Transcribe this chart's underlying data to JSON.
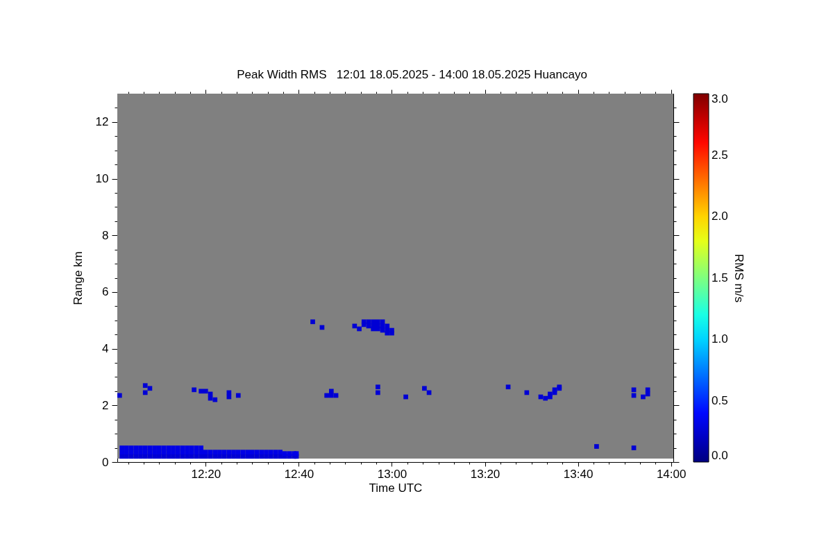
{
  "chart_data": {
    "type": "scatter",
    "title": "Peak Width RMS   12:01 18.05.2025 - 14:00 18.05.2025 Huancayo",
    "xlabel": "Time UTC",
    "ylabel": "Range km",
    "clabel": "RMS m/s",
    "xlim": [
      12.0167,
      14.0083
    ],
    "xticks": [
      {
        "value": 12.0556,
        "label": null
      },
      {
        "value": 12.1111,
        "label": null
      },
      {
        "value": 12.1667,
        "label": null
      },
      {
        "value": 12.2222,
        "label": null
      },
      {
        "value": 12.2778,
        "label": null
      },
      {
        "value": 12.3333,
        "label": "12:20"
      },
      {
        "value": 12.3889,
        "label": null
      },
      {
        "value": 12.4444,
        "label": null
      },
      {
        "value": 12.5,
        "label": null
      },
      {
        "value": 12.5556,
        "label": null
      },
      {
        "value": 12.6111,
        "label": null
      },
      {
        "value": 12.6667,
        "label": "12:40"
      },
      {
        "value": 12.7222,
        "label": null
      },
      {
        "value": 12.7778,
        "label": null
      },
      {
        "value": 12.8333,
        "label": null
      },
      {
        "value": 12.8889,
        "label": null
      },
      {
        "value": 12.9444,
        "label": null
      },
      {
        "value": 13,
        "label": "13:00"
      },
      {
        "value": 13.0556,
        "label": null
      },
      {
        "value": 13.1111,
        "label": null
      },
      {
        "value": 13.1667,
        "label": null
      },
      {
        "value": 13.2222,
        "label": null
      },
      {
        "value": 13.2778,
        "label": null
      },
      {
        "value": 13.3333,
        "label": "13:20"
      },
      {
        "value": 13.3889,
        "label": null
      },
      {
        "value": 13.4444,
        "label": null
      },
      {
        "value": 13.5,
        "label": null
      },
      {
        "value": 13.5556,
        "label": null
      },
      {
        "value": 13.6111,
        "label": null
      },
      {
        "value": 13.6667,
        "label": "13:40"
      },
      {
        "value": 13.7222,
        "label": null
      },
      {
        "value": 13.7778,
        "label": null
      },
      {
        "value": 13.8333,
        "label": null
      },
      {
        "value": 13.8889,
        "label": null
      },
      {
        "value": 13.9444,
        "label": null
      },
      {
        "value": 14,
        "label": "14:00"
      }
    ],
    "ylim": [
      0,
      13
    ],
    "yticks": [
      0,
      {
        "value": 0.5,
        "label": null
      },
      {
        "value": 1,
        "label": null
      },
      {
        "value": 1.5,
        "label": null
      },
      2,
      {
        "value": 2.5,
        "label": null
      },
      {
        "value": 3,
        "label": null
      },
      {
        "value": 3.5,
        "label": null
      },
      4,
      {
        "value": 4.5,
        "label": null
      },
      {
        "value": 5,
        "label": null
      },
      {
        "value": 5.5,
        "label": null
      },
      6,
      {
        "value": 6.5,
        "label": null
      },
      {
        "value": 7,
        "label": null
      },
      {
        "value": 7.5,
        "label": null
      },
      8,
      {
        "value": 8.5,
        "label": null
      },
      {
        "value": 9,
        "label": null
      },
      {
        "value": 9.5,
        "label": null
      },
      10,
      {
        "value": 10.5,
        "label": null
      },
      {
        "value": 11,
        "label": null
      },
      {
        "value": 11.5,
        "label": null
      },
      12,
      {
        "value": 12.5,
        "label": null
      }
    ],
    "clim": [
      0,
      3
    ],
    "cticks": [
      {
        "value": 0,
        "label": "0.0"
      },
      0.5,
      {
        "value": 1,
        "label": "1.0"
      },
      1.5,
      {
        "value": 2,
        "label": "2.0"
      },
      2.5,
      {
        "value": 3,
        "label": "3.0"
      }
    ],
    "marker": "square",
    "bands": [
      {
        "axis": "y",
        "from": 0.12,
        "to": 13,
        "color": "#808080"
      }
    ],
    "x": [
      12.0333,
      12.0333,
      12.0333,
      12.05,
      12.05,
      12.05,
      12.0667,
      12.0667,
      12.0667,
      12.0833,
      12.0833,
      12.0833,
      12.1,
      12.1,
      12.1,
      12.1167,
      12.1167,
      12.1167,
      12.1333,
      12.1333,
      12.1333,
      12.15,
      12.15,
      12.15,
      12.1667,
      12.1667,
      12.1667,
      12.1833,
      12.1833,
      12.1833,
      12.2,
      12.2,
      12.2,
      12.2167,
      12.2167,
      12.2167,
      12.2333,
      12.2333,
      12.2333,
      12.25,
      12.25,
      12.25,
      12.2667,
      12.2667,
      12.2667,
      12.2833,
      12.2833,
      12.2833,
      12.3,
      12.3,
      12.3,
      12.3167,
      12.3167,
      12.3167,
      12.3333,
      12.3333,
      12.35,
      12.35,
      12.3667,
      12.3667,
      12.3833,
      12.3833,
      12.4,
      12.4,
      12.4167,
      12.4167,
      12.4333,
      12.4333,
      12.45,
      12.45,
      12.4667,
      12.4667,
      12.4833,
      12.4833,
      12.5,
      12.5,
      12.5167,
      12.5167,
      12.5333,
      12.5333,
      12.55,
      12.55,
      12.5667,
      12.5667,
      12.5833,
      12.5833,
      12.6,
      12.6,
      12.6167,
      12.6167,
      12.6333,
      12.6333,
      12.65,
      12.65,
      12.6583,
      12.6583,
      12.025,
      12.1167,
      12.1333,
      12.1167,
      12.2917,
      12.3167,
      12.3333,
      12.35,
      12.35,
      12.3667,
      12.4167,
      12.4167,
      12.45,
      12.7167,
      12.75,
      12.8667,
      12.8833,
      12.9,
      12.9,
      12.9167,
      12.9167,
      12.9333,
      12.9333,
      12.9333,
      12.95,
      12.95,
      12.95,
      12.9667,
      12.9667,
      12.9667,
      12.9833,
      12.9833,
      12.9833,
      13.0,
      13.0,
      12.7667,
      12.7833,
      12.7833,
      12.8,
      12.95,
      12.95,
      13.05,
      13.1167,
      13.1333,
      13.4167,
      13.4833,
      13.5333,
      13.55,
      13.5667,
      13.5667,
      13.5833,
      13.5833,
      13.6,
      13.6,
      13.8667,
      13.8667,
      13.9,
      13.9167,
      13.9167,
      13.7333,
      13.8667
    ],
    "values": [
      0.2,
      0.35,
      0.5,
      0.2,
      0.35,
      0.5,
      0.2,
      0.35,
      0.5,
      0.2,
      0.35,
      0.5,
      0.2,
      0.35,
      0.5,
      0.2,
      0.35,
      0.5,
      0.2,
      0.35,
      0.5,
      0.2,
      0.35,
      0.5,
      0.2,
      0.35,
      0.5,
      0.2,
      0.35,
      0.5,
      0.2,
      0.35,
      0.5,
      0.2,
      0.35,
      0.5,
      0.2,
      0.35,
      0.5,
      0.2,
      0.35,
      0.5,
      0.2,
      0.35,
      0.5,
      0.2,
      0.35,
      0.5,
      0.2,
      0.35,
      0.5,
      0.2,
      0.35,
      0.5,
      0.2,
      0.35,
      0.2,
      0.35,
      0.2,
      0.35,
      0.2,
      0.35,
      0.2,
      0.35,
      0.2,
      0.35,
      0.2,
      0.35,
      0.2,
      0.35,
      0.2,
      0.35,
      0.2,
      0.35,
      0.2,
      0.35,
      0.2,
      0.35,
      0.2,
      0.35,
      0.2,
      0.35,
      0.2,
      0.35,
      0.2,
      0.35,
      0.2,
      0.35,
      0.2,
      0.3,
      0.2,
      0.3,
      0.2,
      0.3,
      0.2,
      0.3,
      2.35,
      2.7,
      2.6,
      2.45,
      2.55,
      2.5,
      2.5,
      2.4,
      2.25,
      2.2,
      2.3,
      2.45,
      2.35,
      4.95,
      4.75,
      4.8,
      4.7,
      4.95,
      4.85,
      4.95,
      4.8,
      4.95,
      4.8,
      4.7,
      4.95,
      4.8,
      4.7,
      4.95,
      4.8,
      4.65,
      4.8,
      4.65,
      4.55,
      4.65,
      4.55,
      2.35,
      2.35,
      2.5,
      2.35,
      2.65,
      2.45,
      2.3,
      2.6,
      2.45,
      2.65,
      2.45,
      2.3,
      2.25,
      2.3,
      2.4,
      2.45,
      2.55,
      2.6,
      2.65,
      2.55,
      2.35,
      2.3,
      2.4,
      2.55,
      0.55,
      0.5
    ],
    "cvalues": [
      0.25,
      0.3,
      0.3,
      0.25,
      0.3,
      0.3,
      0.25,
      0.3,
      0.3,
      0.25,
      0.3,
      0.3,
      0.25,
      0.3,
      0.3,
      0.25,
      0.3,
      0.3,
      0.25,
      0.3,
      0.3,
      0.25,
      0.3,
      0.3,
      0.25,
      0.3,
      0.3,
      0.25,
      0.3,
      0.3,
      0.25,
      0.3,
      0.3,
      0.25,
      0.3,
      0.3,
      0.25,
      0.3,
      0.3,
      0.25,
      0.3,
      0.3,
      0.25,
      0.3,
      0.3,
      0.25,
      0.3,
      0.3,
      0.25,
      0.3,
      0.3,
      0.25,
      0.3,
      0.3,
      0.25,
      0.3,
      0.25,
      0.3,
      0.25,
      0.3,
      0.25,
      0.3,
      0.25,
      0.3,
      0.25,
      0.3,
      0.25,
      0.3,
      0.25,
      0.3,
      0.25,
      0.3,
      0.25,
      0.3,
      0.25,
      0.3,
      0.25,
      0.3,
      0.25,
      0.3,
      0.25,
      0.3,
      0.25,
      0.3,
      0.25,
      0.3,
      0.25,
      0.3,
      0.25,
      0.3,
      0.25,
      0.3,
      0.25,
      0.3,
      0.25,
      0.3,
      0.25,
      0.25,
      0.25,
      0.25,
      0.25,
      0.25,
      0.25,
      0.25,
      0.25,
      0.25,
      0.25,
      0.25,
      0.25,
      0.25,
      0.25,
      0.25,
      0.25,
      0.25,
      0.25,
      0.25,
      0.25,
      0.25,
      0.25,
      0.25,
      0.25,
      0.25,
      0.25,
      0.25,
      0.25,
      0.25,
      0.25,
      0.25,
      0.25,
      0.25,
      0.25,
      0.25,
      0.25,
      0.25,
      0.25,
      0.25,
      0.25,
      0.25,
      0.25,
      0.25,
      0.25,
      0.25,
      0.25,
      0.25,
      0.25,
      0.25,
      0.25,
      0.25,
      0.25,
      0.25,
      0.25,
      0.25,
      0.25,
      0.25,
      0.25,
      0.25,
      0.25
    ]
  }
}
